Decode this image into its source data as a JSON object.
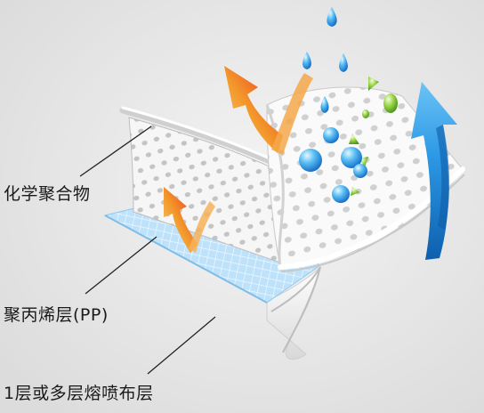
{
  "labels": {
    "chemical_polymer": "化学聚合物",
    "polypropylene_layer": "聚丙烯层(PP)",
    "meltblown_layer": "1层或多层熔喷布层"
  },
  "colors": {
    "background": "#e9e9e9",
    "arrow_orange": "#f07a1c",
    "arrow_red": "#e8281c",
    "arrow_blue": "#1e86d6",
    "droplet_blue": "#3aa6ea",
    "droplet_green": "#7cc23a",
    "mesh_blue": "#a9d6f5"
  }
}
